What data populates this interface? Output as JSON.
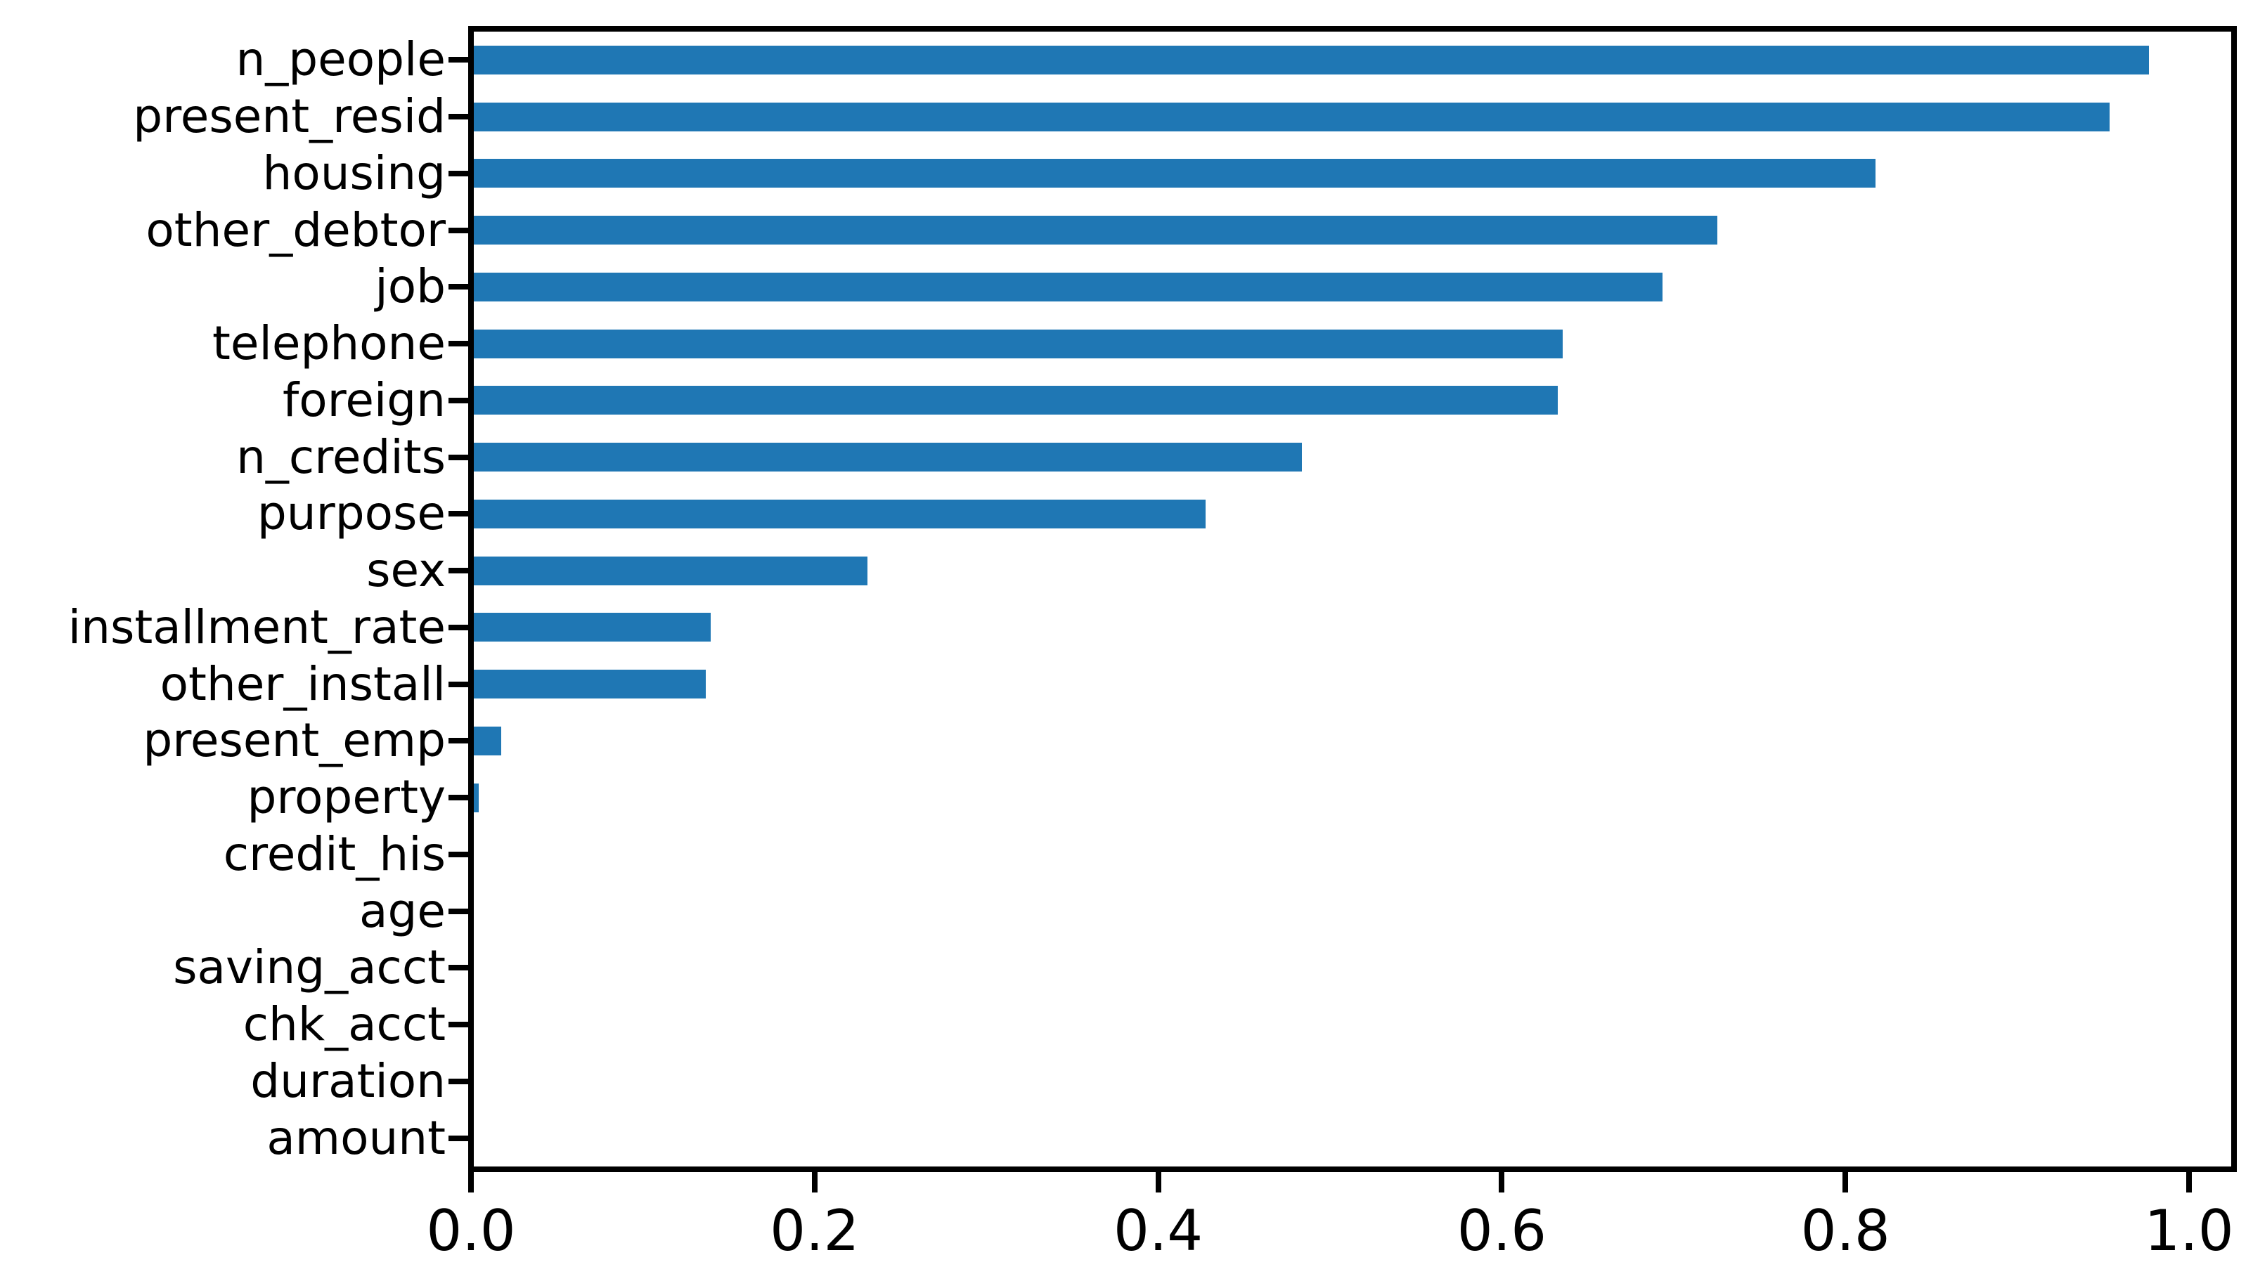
{
  "figure": {
    "background_color": "#ffffff",
    "text_color": "#000000",
    "axis_color": "#000000"
  },
  "chart_data": {
    "type": "bar",
    "orientation": "horizontal",
    "title": "",
    "xlabel": "",
    "ylabel": "",
    "categories": [
      "n_people",
      "present_resid",
      "housing",
      "other_debtor",
      "job",
      "telephone",
      "foreign",
      "n_credits",
      "purpose",
      "sex",
      "installment_rate",
      "other_install",
      "present_emp",
      "property",
      "credit_his",
      "age",
      "saving_acct",
      "chk_acct",
      "duration",
      "amount"
    ],
    "values": [
      0.975,
      0.952,
      0.816,
      0.724,
      0.692,
      0.634,
      0.631,
      0.482,
      0.426,
      0.229,
      0.138,
      0.135,
      0.016,
      0.003,
      0.0,
      0.0,
      0.0,
      0.0,
      0.0,
      0.0
    ],
    "x_ticks": [
      0.0,
      0.2,
      0.4,
      0.6,
      0.8,
      1.0
    ],
    "x_tick_labels": [
      "0.0",
      "0.2",
      "0.4",
      "0.6",
      "0.8",
      "1.0"
    ],
    "xlim": [
      0.0,
      1.023
    ],
    "grid": false,
    "legend": null,
    "bar_color": "#1f77b4"
  }
}
